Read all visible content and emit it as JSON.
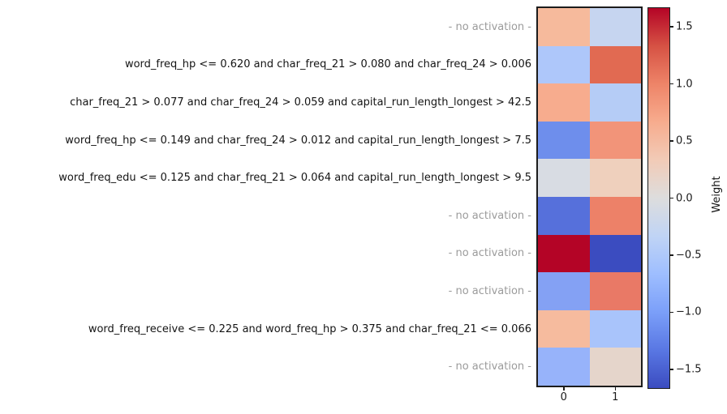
{
  "figure": {
    "background": "#ffffff",
    "text_color": "#141414",
    "muted_text_color": "#9b9b9b",
    "axis_color": "#1c1c1c"
  },
  "chart_data": {
    "type": "heatmap",
    "title": "",
    "xlabel": "",
    "ylabel": "",
    "colormap": "coolwarm",
    "vlim": [
      -1.66,
      1.66
    ],
    "columns": [
      "0",
      "1"
    ],
    "rows": [
      {
        "label": "- no activation -",
        "muted": true,
        "values": [
          0.5,
          -0.35
        ],
        "colors": [
          "#F6BA9C",
          "#C6D5F0"
        ]
      },
      {
        "label": "word_freq_hp <= 0.620 and char_freq_21 > 0.080 and char_freq_24 > 0.006",
        "muted": false,
        "values": [
          -0.55,
          1.15
        ],
        "colors": [
          "#AEC7FA",
          "#E16A52"
        ]
      },
      {
        "label": "char_freq_21 > 0.077 and char_freq_24 > 0.059 and capital_run_length_longest > 42.5",
        "muted": false,
        "values": [
          0.6,
          -0.45
        ],
        "colors": [
          "#F7AC8E",
          "#B5CCF6"
        ]
      },
      {
        "label": "word_freq_hp <= 0.149 and char_freq_24 > 0.012 and capital_run_length_longest > 7.5",
        "muted": false,
        "values": [
          -0.95,
          0.8
        ],
        "colors": [
          "#6E8EEC",
          "#F29479"
        ]
      },
      {
        "label": "word_freq_edu <= 0.125 and char_freq_21 > 0.064 and capital_run_length_longest > 9.5",
        "muted": false,
        "values": [
          -0.1,
          0.35
        ],
        "colors": [
          "#D8DCE3",
          "#EFD0BD"
        ]
      },
      {
        "label": "- no activation -",
        "muted": true,
        "values": [
          -1.2,
          0.9
        ],
        "colors": [
          "#5670DB",
          "#ED8168"
        ]
      },
      {
        "label": "- no activation -",
        "muted": true,
        "values": [
          1.66,
          -1.66
        ],
        "colors": [
          "#B40426",
          "#3B4CC0"
        ]
      },
      {
        "label": "- no activation -",
        "muted": true,
        "values": [
          -0.75,
          1.0
        ],
        "colors": [
          "#84A1F4",
          "#E97966"
        ]
      },
      {
        "label": "word_freq_receive <= 0.225 and word_freq_hp > 0.375 and char_freq_21 <= 0.066",
        "muted": false,
        "values": [
          0.5,
          -0.55
        ],
        "colors": [
          "#F6BB9E",
          "#A9C4FB"
        ]
      },
      {
        "label": "- no activation -",
        "muted": true,
        "values": [
          -0.6,
          0.25
        ],
        "colors": [
          "#97B3FA",
          "#E5D5CB"
        ]
      }
    ],
    "colorbar_label": "Weight",
    "colorbar_ticks": [
      {
        "value": 1.5,
        "label": "1.5"
      },
      {
        "value": 1.0,
        "label": "1.0"
      },
      {
        "value": 0.5,
        "label": "0.5"
      },
      {
        "value": 0.0,
        "label": "0.0"
      },
      {
        "value": -0.5,
        "label": "−0.5"
      },
      {
        "value": -1.0,
        "label": "−1.0"
      },
      {
        "value": -1.5,
        "label": "−1.5"
      }
    ],
    "colorbar_gradient": [
      "#B40426",
      "#D65244",
      "#EE8468",
      "#F7AC8E",
      "#F2CBB7",
      "#DDDDDD",
      "#C0D4F5",
      "#9EBEFF",
      "#7B9FF9",
      "#5977E3",
      "#3B4CC0"
    ],
    "legend_position": "right-colorbar",
    "grid": false
  }
}
